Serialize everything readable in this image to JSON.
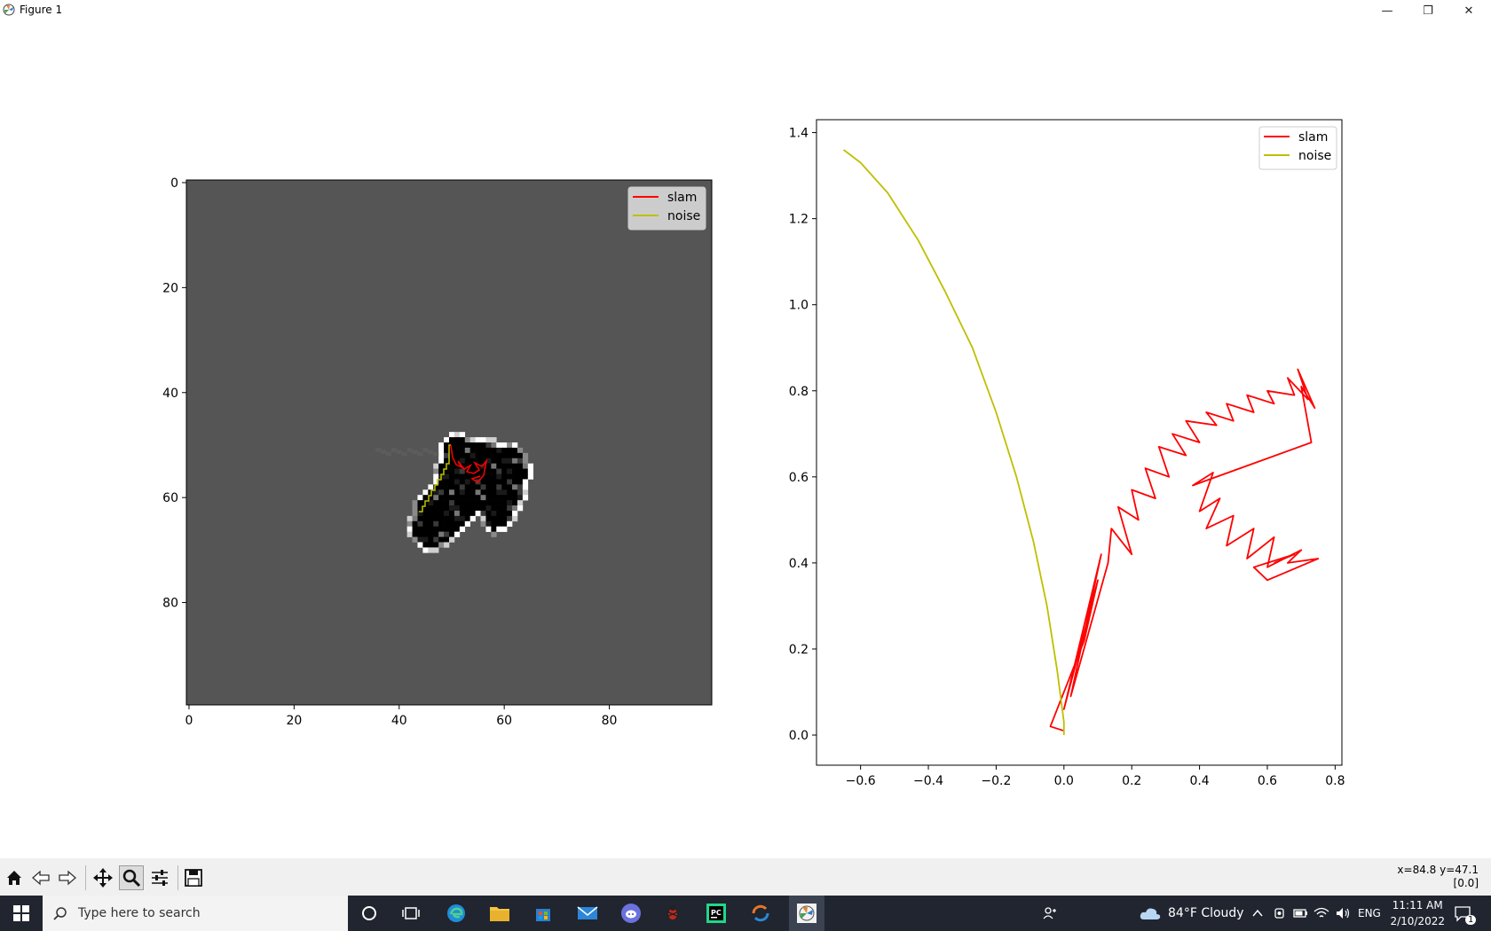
{
  "window": {
    "title": "Figure 1",
    "minimize_label": "—",
    "restore_label": "❐",
    "close_label": "✕"
  },
  "left_plot": {
    "xticks": [
      "0",
      "20",
      "40",
      "60",
      "80"
    ],
    "yticks": [
      "0",
      "20",
      "40",
      "60",
      "80"
    ],
    "legend": [
      {
        "label": "slam",
        "color": "#ff0000"
      },
      {
        "label": "noise",
        "color": "#bfbf00"
      }
    ]
  },
  "chart_data": {
    "type": "line",
    "xlim": [
      -0.73,
      0.82
    ],
    "ylim": [
      -0.07,
      1.43
    ],
    "xticks": [
      "−0.6",
      "−0.4",
      "−0.2",
      "0.0",
      "0.2",
      "0.4",
      "0.6",
      "0.8"
    ],
    "yticks": [
      "0.0",
      "0.2",
      "0.4",
      "0.6",
      "0.8",
      "1.0",
      "1.2",
      "1.4"
    ],
    "legend_position": "top-right",
    "series": [
      {
        "name": "slam",
        "color": "#ff0000",
        "points": [
          [
            0.0,
            0.01
          ],
          [
            -0.04,
            0.02
          ],
          [
            0.06,
            0.22
          ],
          [
            0.1,
            0.36
          ],
          [
            0.0,
            0.06
          ],
          [
            0.11,
            0.42
          ],
          [
            0.02,
            0.09
          ],
          [
            0.13,
            0.4
          ],
          [
            0.14,
            0.48
          ],
          [
            0.2,
            0.42
          ],
          [
            0.16,
            0.53
          ],
          [
            0.22,
            0.5
          ],
          [
            0.2,
            0.57
          ],
          [
            0.27,
            0.55
          ],
          [
            0.24,
            0.62
          ],
          [
            0.31,
            0.6
          ],
          [
            0.28,
            0.67
          ],
          [
            0.36,
            0.65
          ],
          [
            0.32,
            0.7
          ],
          [
            0.4,
            0.68
          ],
          [
            0.36,
            0.73
          ],
          [
            0.45,
            0.72
          ],
          [
            0.42,
            0.75
          ],
          [
            0.5,
            0.73
          ],
          [
            0.48,
            0.77
          ],
          [
            0.56,
            0.75
          ],
          [
            0.54,
            0.79
          ],
          [
            0.62,
            0.77
          ],
          [
            0.6,
            0.8
          ],
          [
            0.68,
            0.79
          ],
          [
            0.66,
            0.83
          ],
          [
            0.72,
            0.78
          ],
          [
            0.69,
            0.85
          ],
          [
            0.74,
            0.76
          ],
          [
            0.7,
            0.81
          ],
          [
            0.73,
            0.68
          ],
          [
            0.38,
            0.58
          ],
          [
            0.44,
            0.61
          ],
          [
            0.4,
            0.52
          ],
          [
            0.46,
            0.55
          ],
          [
            0.42,
            0.48
          ],
          [
            0.5,
            0.51
          ],
          [
            0.48,
            0.44
          ],
          [
            0.56,
            0.48
          ],
          [
            0.54,
            0.41
          ],
          [
            0.62,
            0.46
          ],
          [
            0.6,
            0.39
          ],
          [
            0.7,
            0.43
          ],
          [
            0.66,
            0.4
          ],
          [
            0.75,
            0.41
          ],
          [
            0.6,
            0.36
          ],
          [
            0.56,
            0.39
          ],
          [
            0.68,
            0.42
          ],
          [
            0.62,
            0.4
          ]
        ]
      },
      {
        "name": "noise",
        "color": "#bfbf00",
        "points": [
          [
            0.0,
            0.0
          ],
          [
            0.0,
            0.03
          ],
          [
            -0.02,
            0.15
          ],
          [
            -0.05,
            0.3
          ],
          [
            -0.09,
            0.45
          ],
          [
            -0.14,
            0.6
          ],
          [
            -0.2,
            0.75
          ],
          [
            -0.27,
            0.9
          ],
          [
            -0.35,
            1.03
          ],
          [
            -0.43,
            1.15
          ],
          [
            -0.52,
            1.26
          ],
          [
            -0.6,
            1.33
          ],
          [
            -0.65,
            1.36
          ]
        ]
      }
    ]
  },
  "toolbar": {
    "buttons": [
      {
        "name": "home-button",
        "icon": "home-icon"
      },
      {
        "name": "back-button",
        "icon": "arrow-left-icon"
      },
      {
        "name": "forward-button",
        "icon": "arrow-right-icon"
      },
      {
        "name": "pan-button",
        "icon": "move-icon"
      },
      {
        "name": "zoom-button",
        "icon": "magnifier-icon"
      },
      {
        "name": "configure-subplots-button",
        "icon": "sliders-icon"
      },
      {
        "name": "save-button",
        "icon": "floppy-icon"
      }
    ],
    "coords_line1": "x=84.8 y=47.1",
    "coords_line2": "[0.0]"
  },
  "taskbar": {
    "search_placeholder": "Type here to search",
    "weather": "84°F  Cloudy",
    "language": "ENG",
    "time": "11:11 AM",
    "date": "2/10/2022",
    "notification_count": "1"
  }
}
